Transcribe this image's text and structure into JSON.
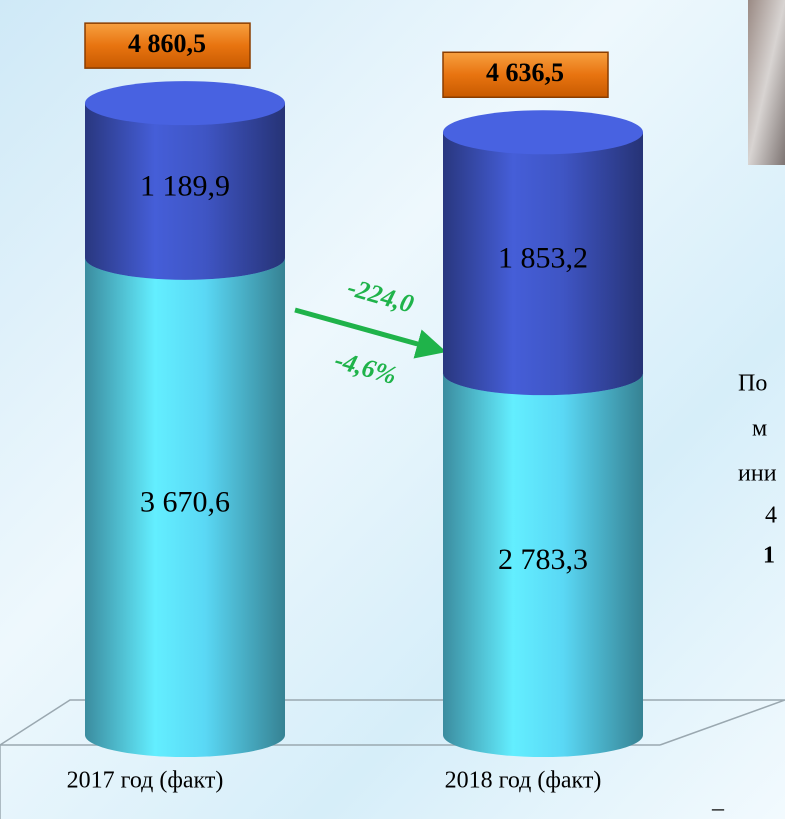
{
  "chart_data": {
    "type": "stacked-cylinder",
    "categories": [
      "2017 год (факт)",
      "2018 год (факт)"
    ],
    "series": [
      {
        "color": "#5ad8f5",
        "values": [
          3670.6,
          2783.3
        ],
        "value_labels": [
          "3 670,6",
          "2 783,3"
        ]
      },
      {
        "color": "#3f55c4",
        "values": [
          1189.9,
          1853.2
        ],
        "value_labels": [
          "1 189,9",
          "1 853,2"
        ]
      }
    ],
    "totals": [
      4860.5,
      4636.5
    ],
    "total_labels": [
      "4 860,5",
      "4 636,5"
    ],
    "annotations": [
      "-224,0",
      "-4,6%"
    ],
    "side_text": [
      "По",
      "м",
      "ини",
      "4",
      "1",
      "–"
    ]
  }
}
